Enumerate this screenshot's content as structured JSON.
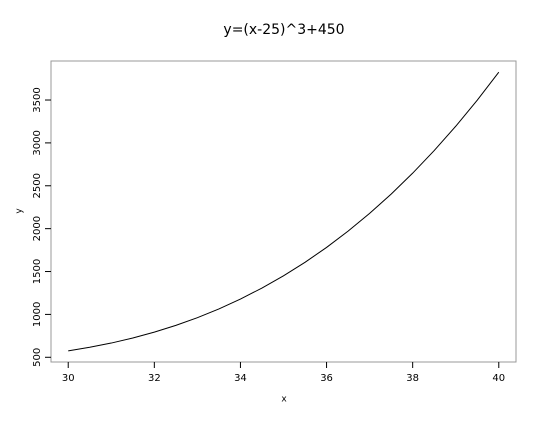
{
  "chart_data": {
    "type": "line",
    "title": "y=(x-25)^3+450",
    "xlabel": "x",
    "ylabel": "y",
    "x": [
      30,
      30.5,
      31,
      31.5,
      32,
      32.5,
      33,
      33.5,
      34,
      34.5,
      35,
      35.5,
      36,
      36.5,
      37,
      37.5,
      38,
      38.5,
      39,
      39.5,
      40
    ],
    "values": [
      575,
      616.375,
      666,
      724.625,
      793,
      871.875,
      962,
      1064.125,
      1179,
      1307.375,
      1450,
      1607.625,
      1781,
      1970.875,
      2178,
      2403.125,
      2647,
      2910.375,
      3194,
      3498.625,
      3825
    ],
    "color": "#000000",
    "xlim": [
      29.6,
      40.4
    ],
    "ylim": [
      445,
      3955
    ],
    "xticks": [
      30,
      32,
      34,
      36,
      38,
      40
    ],
    "yticks": [
      500,
      1000,
      1500,
      2000,
      2500,
      3000,
      3500
    ]
  }
}
